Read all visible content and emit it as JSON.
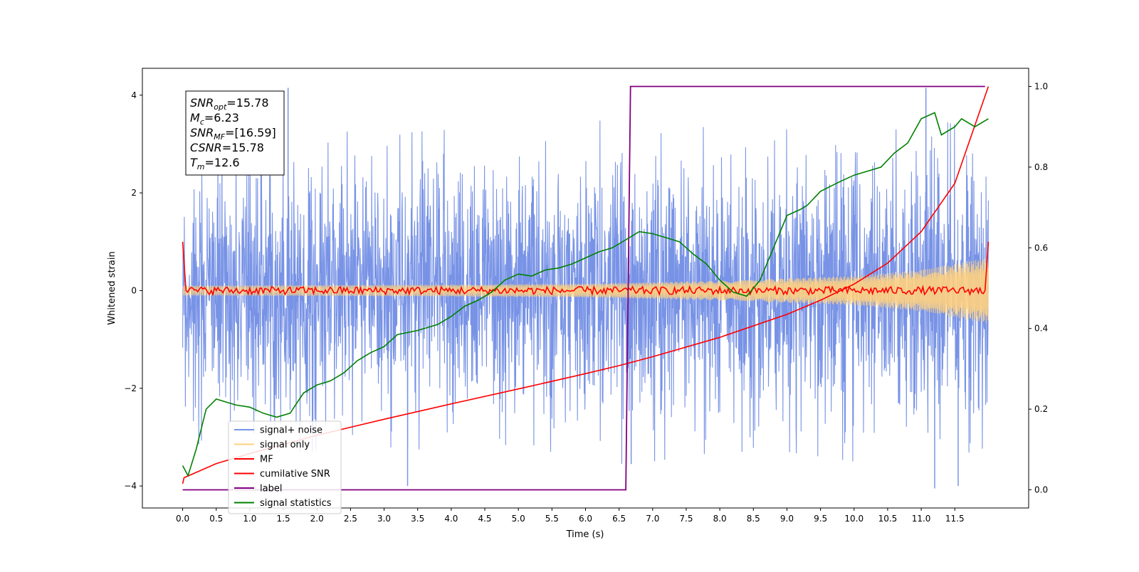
{
  "chart_data": {
    "type": "line",
    "xlabel": "Time (s)",
    "ylabel": "Whitened strain",
    "xlim": [
      -0.6,
      12.6
    ],
    "ylim": [
      -4.45,
      4.55
    ],
    "y2lim": [
      -0.045,
      1.045
    ],
    "x_ticks": [
      "0.0",
      "0.5",
      "1.0",
      "1.5",
      "2.0",
      "2.5",
      "3.0",
      "3.5",
      "4.0",
      "4.5",
      "5.0",
      "5.5",
      "6.0",
      "6.5",
      "7.0",
      "7.5",
      "8.0",
      "8.5",
      "9.0",
      "9.5",
      "10.0",
      "10.5",
      "11.0",
      "11.5"
    ],
    "y_ticks": [
      "4",
      "2",
      "0",
      "−2",
      "−4"
    ],
    "y2_ticks": [
      "1.0",
      "0.8",
      "0.6",
      "0.4",
      "0.2",
      "0.0"
    ],
    "annotation": [
      {
        "sym": "SNR",
        "sub": "opt",
        "val": "=15.78"
      },
      {
        "sym": "M",
        "sub": "c",
        "val": "=6.23"
      },
      {
        "sym": "SNR",
        "sub": "MF",
        "val": "=[16.59]"
      },
      {
        "sym": "CSNR",
        "sub": "",
        "val": "=15.78"
      },
      {
        "sym": "T",
        "sub": "m",
        "val": "=12.6"
      }
    ],
    "legend": {
      "placement": "lower-left",
      "entries": [
        {
          "label": "signal+ noise",
          "color": "#7893e6"
        },
        {
          "label": "signal only",
          "color": "#ffd27f"
        },
        {
          "label": "MF",
          "color": "#ff0000"
        },
        {
          "label": "cumilative SNR",
          "color": "#ff0000"
        },
        {
          "label": "label",
          "color": "#800080"
        },
        {
          "label": "signal statistics",
          "color": "#008000"
        }
      ]
    },
    "series": [
      {
        "name": "signal+ noise",
        "axis": "left",
        "color": "#7893e6",
        "envelope_x": [
          0,
          1,
          2,
          3,
          4,
          5,
          6,
          7,
          8,
          9,
          10,
          11,
          12
        ],
        "envelope_abs_max": [
          3.1,
          3.3,
          3.3,
          3.2,
          3.3,
          3.5,
          3.6,
          3.5,
          3.3,
          3.3,
          3.5,
          3.6,
          3.2
        ],
        "envelope_typical": [
          2.4,
          2.4,
          2.4,
          2.4,
          2.4,
          2.4,
          2.4,
          2.3,
          2.3,
          2.4,
          2.4,
          2.5,
          2.4
        ],
        "spikes": [
          [
            1.57,
            4.15
          ],
          [
            11.07,
            4.15
          ],
          [
            3.35,
            -4.0
          ],
          [
            11.2,
            -4.05
          ],
          [
            6.68,
            -3.55
          ],
          [
            11.55,
            -4.0
          ]
        ]
      },
      {
        "name": "signal only",
        "axis": "left",
        "color": "#ffd27f",
        "x": [
          0,
          2,
          4,
          6,
          8,
          10,
          11,
          12
        ],
        "amplitude": [
          0.1,
          0.11,
          0.12,
          0.14,
          0.2,
          0.3,
          0.42,
          0.68
        ]
      },
      {
        "name": "MF",
        "axis": "left",
        "color": "#ff0000",
        "x": [
          0,
          0.05,
          0.5,
          1,
          2,
          3,
          4,
          5,
          6,
          7,
          8,
          9,
          10,
          11,
          11.95,
          12
        ],
        "y": [
          1.0,
          0.0,
          0.0,
          0.0,
          0.0,
          0.0,
          0.0,
          0.0,
          0.0,
          0.0,
          0.0,
          0.0,
          0.0,
          0.0,
          0.0,
          1.0
        ]
      },
      {
        "name": "cumilative SNR",
        "axis": "right",
        "color": "#ff0000",
        "x": [
          0,
          0.02,
          0.5,
          1,
          2,
          3,
          4,
          5,
          6,
          6.5,
          7,
          8,
          9,
          9.5,
          10,
          10.5,
          11,
          11.5,
          12
        ],
        "y": [
          0.015,
          0.03,
          0.065,
          0.09,
          0.135,
          0.175,
          0.213,
          0.25,
          0.288,
          0.308,
          0.33,
          0.378,
          0.435,
          0.47,
          0.51,
          0.562,
          0.64,
          0.76,
          1.0
        ]
      },
      {
        "name": "label",
        "axis": "right",
        "color": "#800080",
        "x": [
          0,
          6.6,
          6.67,
          11.95
        ],
        "y": [
          0.0,
          0.0,
          1.0,
          1.0
        ]
      },
      {
        "name": "signal statistics",
        "axis": "right",
        "color": "#008000",
        "x": [
          0,
          0.08,
          0.2,
          0.35,
          0.5,
          0.7,
          0.8,
          1.0,
          1.2,
          1.4,
          1.6,
          1.8,
          2.0,
          2.2,
          2.4,
          2.6,
          2.8,
          3.0,
          3.2,
          3.5,
          3.8,
          4.0,
          4.2,
          4.4,
          4.6,
          4.8,
          5.0,
          5.2,
          5.4,
          5.6,
          5.8,
          6.0,
          6.2,
          6.4,
          6.6,
          6.8,
          7.0,
          7.2,
          7.4,
          7.6,
          7.8,
          8.0,
          8.2,
          8.4,
          8.6,
          8.8,
          9.0,
          9.2,
          9.3,
          9.5,
          9.8,
          10.0,
          10.2,
          10.4,
          10.6,
          10.8,
          11.0,
          11.2,
          11.3,
          11.5,
          11.6,
          11.8,
          12.0
        ],
        "y": [
          0.06,
          0.035,
          0.1,
          0.2,
          0.225,
          0.215,
          0.21,
          0.205,
          0.19,
          0.18,
          0.19,
          0.24,
          0.26,
          0.27,
          0.29,
          0.32,
          0.34,
          0.355,
          0.385,
          0.395,
          0.41,
          0.43,
          0.455,
          0.47,
          0.49,
          0.52,
          0.535,
          0.53,
          0.545,
          0.55,
          0.56,
          0.575,
          0.59,
          0.6,
          0.62,
          0.64,
          0.635,
          0.625,
          0.615,
          0.585,
          0.56,
          0.52,
          0.49,
          0.48,
          0.52,
          0.6,
          0.68,
          0.695,
          0.705,
          0.74,
          0.765,
          0.78,
          0.79,
          0.8,
          0.835,
          0.86,
          0.92,
          0.935,
          0.88,
          0.9,
          0.92,
          0.9,
          0.92
        ]
      }
    ]
  }
}
